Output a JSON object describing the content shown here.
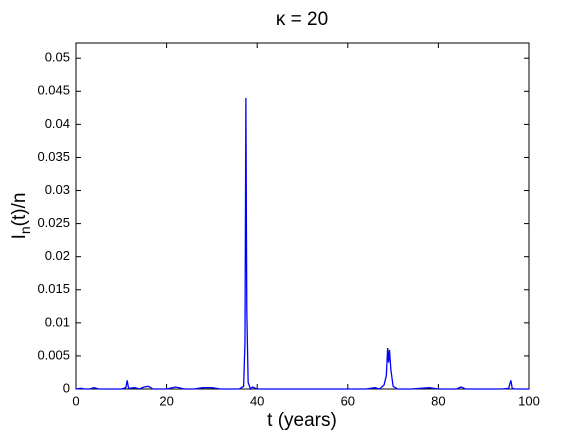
{
  "chart_data": {
    "type": "line",
    "title": "κ = 20",
    "xlabel": "t (years)",
    "ylabel_parts": [
      "I",
      "n",
      "(t)/n"
    ],
    "x": [
      0,
      1,
      2,
      3,
      4,
      5,
      6,
      8,
      10,
      11,
      11.3,
      11.6,
      13,
      14,
      15,
      16,
      17,
      20,
      22,
      24,
      26,
      28,
      30,
      32,
      34,
      36,
      37,
      37.3,
      37.5,
      37.7,
      38,
      38.5,
      39,
      40,
      44,
      48,
      52,
      56,
      60,
      64,
      66,
      67,
      68,
      68.5,
      68.8,
      69,
      69.2,
      69.5,
      70,
      71,
      74,
      78,
      80,
      84,
      85,
      86,
      90,
      94,
      95.5,
      96,
      96.3,
      97,
      100
    ],
    "series": [
      {
        "color": "#0000ff",
        "values": [
          0,
          0.0001,
          0,
          0,
          0.0002,
          0,
          0,
          0,
          0,
          0.0002,
          0.0013,
          0.0001,
          0.0002,
          0,
          0.0003,
          0.0004,
          0,
          0,
          0.0003,
          0,
          0,
          0.0002,
          0.0002,
          0,
          0,
          0,
          0.0004,
          0.007,
          0.044,
          0.012,
          0.001,
          0,
          0.0003,
          0,
          0,
          0,
          0,
          0,
          0,
          0,
          0.0002,
          0,
          0.0006,
          0.002,
          0.0062,
          0.004,
          0.0059,
          0.003,
          0.0004,
          0,
          0,
          0.0002,
          0,
          0,
          0.0003,
          0,
          0,
          0,
          0.0001,
          0.0013,
          0.0001,
          0,
          0
        ]
      }
    ],
    "xlim": [
      0,
      100
    ],
    "xticks": [
      0,
      20,
      40,
      60,
      80,
      100
    ],
    "ylim": [
      0,
      0.0523
    ],
    "yticks": [
      0,
      0.005,
      0.01,
      0.015,
      0.02,
      0.025,
      0.03,
      0.035,
      0.04,
      0.045,
      0.05
    ],
    "grid": false
  }
}
